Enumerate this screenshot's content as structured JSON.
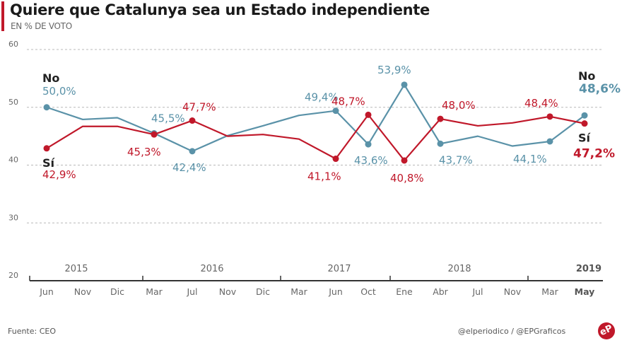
{
  "header": {
    "title": "Quiere que Catalunya sea un Estado independiente",
    "subtitle": "EN % DE VOTO"
  },
  "footer": {
    "source": "Fuente: CEO",
    "credits": "@elperiodico / @EPGraficos",
    "logo_text": "eP"
  },
  "colors": {
    "si": "#c0182a",
    "no": "#5a92a8",
    "accent": "#c0182a"
  },
  "chart_data": {
    "type": "line",
    "title": "Quiere que Catalunya sea un Estado independiente",
    "subtitle": "EN % DE VOTO",
    "xlabel": "",
    "ylabel": "",
    "ylim": [
      20,
      60
    ],
    "yticks": [
      20,
      30,
      40,
      50,
      60
    ],
    "grid": true,
    "categories": [
      "Jun",
      "Nov",
      "Dic",
      "Mar",
      "Jul",
      "Nov",
      "Dic",
      "Mar",
      "Jun",
      "Oct",
      "Ene",
      "Abr",
      "Jul",
      "Nov",
      "Mar",
      "May"
    ],
    "years": [
      {
        "label": "2015",
        "start": 0,
        "end": 2
      },
      {
        "label": "2016",
        "start": 3,
        "end": 6
      },
      {
        "label": "2017",
        "start": 7,
        "end": 9
      },
      {
        "label": "2018",
        "start": 10,
        "end": 13
      },
      {
        "label": "2019",
        "start": 14,
        "end": 15
      }
    ],
    "series": [
      {
        "name": "No",
        "key": "no",
        "values": [
          50.0,
          47.9,
          48.2,
          45.5,
          42.4,
          45.1,
          46.8,
          48.6,
          49.4,
          43.6,
          53.9,
          43.7,
          45.0,
          43.3,
          44.1,
          48.6
        ],
        "markers": [
          0,
          3,
          4,
          8,
          9,
          10,
          11,
          14,
          15
        ],
        "labels": {
          "0": "50,0%",
          "3": "45,5%",
          "4": "42,4%",
          "8": "49,4%",
          "9": "43,6%",
          "10": "53,9%",
          "11": "43,7%",
          "14": "44,1%",
          "15": "48,6%"
        }
      },
      {
        "name": "Sí",
        "key": "si",
        "values": [
          42.9,
          46.7,
          46.7,
          45.3,
          47.7,
          45.0,
          45.3,
          44.5,
          41.1,
          48.7,
          40.8,
          48.0,
          46.8,
          47.3,
          48.4,
          47.2
        ],
        "markers": [
          0,
          3,
          4,
          8,
          9,
          10,
          11,
          14,
          15
        ],
        "labels": {
          "0": "42,9%",
          "3": "45,3%",
          "4": "47,7%",
          "8": "41,1%",
          "9": "48,7%",
          "10": "40,8%",
          "11": "48,0%",
          "14": "48,4%",
          "15": "47,2%"
        }
      }
    ],
    "legend": "inline-labels"
  }
}
